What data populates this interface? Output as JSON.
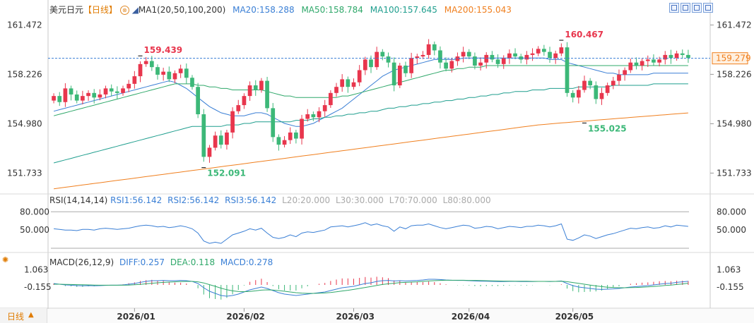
{
  "header": {
    "symbol": "美元日元",
    "period": "【日线】",
    "ma_label": "MA1(20,50,100,200)",
    "ma20": "MA20:158.288",
    "ma50": "MA50:158.784",
    "ma100": "MA100:157.645",
    "ma200": "MA200:155.043"
  },
  "rsi_header": {
    "label": "RSI(14,14,14)",
    "rsi1": "RSI1:56.142",
    "rsi2": "RSI2:56.142",
    "rsi3": "RSI3:56.142",
    "l20": "L20:20.000",
    "l30": "L30:30.000",
    "l70": "L70:70.000",
    "l80": "L80:80.000"
  },
  "macd_header": {
    "label": "MACD(26,12,9)",
    "diff": "DIFF:0.257",
    "dea": "DEA:0.118",
    "macd": "MACD:0.278"
  },
  "period_tab": {
    "label": "日线",
    "arrow": "▲"
  },
  "colors": {
    "up": "#e8364d",
    "down": "#3cb878",
    "ma20": "#3a7fd5",
    "ma50": "#2fa86a",
    "ma100": "#1f9e8e",
    "ma200": "#f07f1e",
    "current_price_bg": "#fff0e0"
  },
  "icons": [
    "zoom-in-icon",
    "zoom-out-icon",
    "back-icon",
    "download-icon"
  ],
  "chart_data": [
    {
      "type": "candlestick",
      "x_ticks": [
        "2026/01",
        "2026/02",
        "2026/03",
        "2026/04",
        "2026/05"
      ],
      "y_ticks": [
        "161.472",
        "158.226",
        "154.980",
        "151.733"
      ],
      "ylim": [
        150.5,
        162.0
      ],
      "current_price": "159.279",
      "current_value": 159.279,
      "annotations": [
        {
          "text": "159.439",
          "value": 159.439,
          "type": "high"
        },
        {
          "text": "152.091",
          "value": 152.091,
          "type": "low"
        },
        {
          "text": "160.467",
          "value": 160.467,
          "type": "high"
        },
        {
          "text": "155.025",
          "value": 155.025,
          "type": "low"
        }
      ],
      "closes": [
        156.8,
        156.4,
        157.3,
        156.9,
        156.5,
        156.8,
        157.0,
        156.7,
        156.9,
        157.3,
        157.1,
        157.0,
        157.3,
        157.6,
        158.1,
        158.9,
        159.1,
        158.7,
        158.2,
        158.4,
        157.9,
        158.3,
        158.6,
        158.0,
        157.4,
        155.6,
        152.8,
        153.4,
        154.2,
        153.6,
        154.4,
        155.8,
        156.2,
        156.8,
        157.5,
        157.2,
        157.8,
        156.0,
        154.1,
        153.6,
        153.9,
        154.4,
        154.0,
        155.3,
        155.6,
        155.4,
        155.8,
        156.2,
        157.0,
        157.4,
        157.9,
        157.4,
        157.7,
        158.5,
        159.2,
        158.7,
        159.7,
        159.4,
        159.0,
        157.5,
        158.8,
        158.3,
        159.3,
        159.4,
        159.5,
        160.2,
        159.8,
        159.0,
        158.6,
        159.1,
        159.4,
        159.7,
        159.4,
        158.8,
        159.0,
        159.5,
        159.2,
        158.9,
        159.3,
        159.6,
        159.4,
        159.2,
        159.5,
        159.6,
        159.9,
        159.7,
        159.3,
        159.6,
        160.0,
        157.0,
        156.7,
        157.2,
        157.8,
        157.5,
        156.6,
        157.0,
        157.5,
        157.8,
        158.2,
        158.5,
        159.0,
        158.8,
        159.1,
        159.2,
        159.0,
        159.2,
        159.5,
        159.3,
        159.6,
        159.5,
        159.3
      ],
      "series": [
        {
          "name": "MA20",
          "values": [
            155.8,
            155.9,
            156.0,
            156.1,
            156.2,
            156.3,
            156.4,
            156.5,
            156.6,
            156.7,
            156.8,
            156.9,
            157.0,
            157.1,
            157.2,
            157.3,
            157.4,
            157.5,
            157.6,
            157.7,
            157.8,
            157.7,
            157.5,
            157.3,
            157.0,
            156.7,
            156.4,
            156.1,
            155.9,
            155.7,
            155.6,
            155.5,
            155.5,
            155.5,
            155.6,
            155.7,
            155.7,
            155.6,
            155.4,
            155.2,
            155.0,
            154.9,
            154.8,
            154.8,
            154.9,
            155.0,
            155.2,
            155.4,
            155.6,
            155.8,
            156.0,
            156.3,
            156.6,
            156.9,
            157.2,
            157.5,
            157.8,
            158.1,
            158.3,
            158.5,
            158.6,
            158.7,
            158.8,
            158.9,
            159.0,
            159.1,
            159.2,
            159.2,
            159.2,
            159.2,
            159.2,
            159.3,
            159.3,
            159.3,
            159.3,
            159.3,
            159.3,
            159.3,
            159.3,
            159.3,
            159.3,
            159.3,
            159.3,
            159.3,
            159.3,
            159.3,
            159.2,
            159.2,
            159.2,
            159.0,
            158.9,
            158.8,
            158.7,
            158.6,
            158.5,
            158.4,
            158.3,
            158.3,
            158.2,
            158.2,
            158.2,
            158.2,
            158.2,
            158.2,
            158.3,
            158.3,
            158.3,
            158.3,
            158.3,
            158.3,
            158.3
          ]
        },
        {
          "name": "MA50",
          "values": [
            155.5,
            155.6,
            155.7,
            155.8,
            155.9,
            156.0,
            156.1,
            156.2,
            156.3,
            156.4,
            156.5,
            156.6,
            156.7,
            156.8,
            156.9,
            157.0,
            157.1,
            157.2,
            157.3,
            157.4,
            157.5,
            157.6,
            157.6,
            157.6,
            157.6,
            157.5,
            157.5,
            157.4,
            157.4,
            157.3,
            157.3,
            157.2,
            157.2,
            157.2,
            157.2,
            157.2,
            157.2,
            157.1,
            157.0,
            156.9,
            156.8,
            156.8,
            156.7,
            156.7,
            156.7,
            156.7,
            156.7,
            156.7,
            156.7,
            156.7,
            156.8,
            156.8,
            156.9,
            157.0,
            157.1,
            157.2,
            157.3,
            157.4,
            157.5,
            157.6,
            157.7,
            157.8,
            157.9,
            158.0,
            158.1,
            158.2,
            158.3,
            158.4,
            158.5,
            158.5,
            158.6,
            158.6,
            158.7,
            158.7,
            158.7,
            158.8,
            158.8,
            158.8,
            158.8,
            158.8,
            158.8,
            158.8,
            158.8,
            158.8,
            158.8,
            158.8,
            158.8,
            158.8,
            158.8,
            158.8,
            158.8,
            158.8,
            158.8,
            158.8,
            158.8,
            158.8,
            158.8,
            158.8,
            158.8,
            158.8,
            158.8,
            158.8,
            158.8,
            158.8,
            158.8,
            158.8,
            158.8,
            158.8,
            158.8,
            158.8,
            158.8
          ]
        },
        {
          "name": "MA100",
          "values": [
            152.4,
            152.5,
            152.6,
            152.7,
            152.8,
            152.9,
            153.0,
            153.1,
            153.2,
            153.3,
            153.4,
            153.5,
            153.6,
            153.7,
            153.8,
            153.9,
            154.0,
            154.1,
            154.2,
            154.3,
            154.4,
            154.5,
            154.6,
            154.7,
            154.8,
            154.8,
            154.8,
            154.8,
            154.8,
            154.8,
            154.9,
            154.9,
            154.9,
            155.0,
            155.0,
            155.1,
            155.1,
            155.1,
            155.1,
            155.1,
            155.1,
            155.1,
            155.2,
            155.2,
            155.2,
            155.3,
            155.3,
            155.4,
            155.4,
            155.5,
            155.5,
            155.6,
            155.6,
            155.7,
            155.7,
            155.8,
            155.8,
            155.9,
            156.0,
            156.0,
            156.1,
            156.1,
            156.2,
            156.2,
            156.3,
            156.3,
            156.4,
            156.4,
            156.5,
            156.5,
            156.6,
            156.6,
            156.7,
            156.7,
            156.8,
            156.8,
            156.9,
            156.9,
            157.0,
            157.0,
            157.1,
            157.1,
            157.1,
            157.2,
            157.2,
            157.2,
            157.3,
            157.3,
            157.3,
            157.3,
            157.3,
            157.4,
            157.4,
            157.4,
            157.4,
            157.4,
            157.4,
            157.5,
            157.5,
            157.5,
            157.5,
            157.5,
            157.5,
            157.5,
            157.6,
            157.6,
            157.6,
            157.6,
            157.6,
            157.6,
            157.6
          ]
        },
        {
          "name": "MA200",
          "values": [
            150.7,
            150.75,
            150.8,
            150.85,
            150.9,
            150.95,
            151.0,
            151.05,
            151.1,
            151.15,
            151.2,
            151.25,
            151.3,
            151.35,
            151.4,
            151.45,
            151.5,
            151.55,
            151.6,
            151.65,
            151.7,
            151.75,
            151.8,
            151.85,
            151.9,
            151.95,
            152.0,
            152.05,
            152.1,
            152.15,
            152.2,
            152.25,
            152.3,
            152.35,
            152.4,
            152.45,
            152.5,
            152.55,
            152.6,
            152.65,
            152.7,
            152.75,
            152.8,
            152.85,
            152.9,
            152.95,
            153.0,
            153.05,
            153.1,
            153.15,
            153.2,
            153.25,
            153.3,
            153.35,
            153.4,
            153.45,
            153.5,
            153.55,
            153.6,
            153.65,
            153.7,
            153.75,
            153.8,
            153.85,
            153.9,
            153.95,
            154.0,
            154.05,
            154.1,
            154.15,
            154.2,
            154.25,
            154.3,
            154.35,
            154.4,
            154.45,
            154.5,
            154.55,
            154.6,
            154.65,
            154.7,
            154.75,
            154.8,
            154.85,
            154.9,
            154.93,
            154.96,
            155.0,
            155.03,
            155.06,
            155.09,
            155.12,
            155.15,
            155.18,
            155.21,
            155.24,
            155.27,
            155.3,
            155.33,
            155.36,
            155.39,
            155.42,
            155.45,
            155.48,
            155.51,
            155.54,
            155.57,
            155.6,
            155.63,
            155.66,
            155.69
          ]
        }
      ]
    },
    {
      "type": "line",
      "name": "RSI",
      "y_ticks": [
        "80.000",
        "50.000"
      ],
      "ylim": [
        20,
        85
      ],
      "levels": [
        80,
        20
      ],
      "values": [
        52,
        51,
        50,
        50,
        49,
        51,
        51,
        50,
        52,
        53,
        52,
        51,
        52,
        53,
        55,
        57,
        58,
        57,
        55,
        56,
        54,
        55,
        57,
        55,
        52,
        45,
        32,
        28,
        30,
        28,
        35,
        42,
        45,
        48,
        52,
        50,
        53,
        45,
        38,
        36,
        38,
        42,
        39,
        45,
        47,
        46,
        48,
        50,
        55,
        56,
        57,
        55,
        57,
        59,
        62,
        58,
        60,
        57,
        55,
        48,
        55,
        52,
        57,
        58,
        58,
        60,
        57,
        54,
        52,
        54,
        56,
        58,
        57,
        53,
        54,
        56,
        55,
        52,
        54,
        56,
        55,
        54,
        56,
        56,
        58,
        57,
        55,
        57,
        60,
        35,
        33,
        37,
        42,
        40,
        36,
        39,
        42,
        44,
        47,
        50,
        53,
        52,
        54,
        55,
        53,
        54,
        57,
        55,
        58,
        57,
        56
      ]
    },
    {
      "type": "bar+line",
      "name": "MACD",
      "y_ticks": [
        "1.063",
        "-0.155"
      ],
      "ylim": [
        -1.6,
        1.5
      ],
      "diff": [
        0.1,
        0.05,
        0.0,
        -0.02,
        -0.05,
        -0.06,
        -0.05,
        -0.06,
        -0.05,
        -0.03,
        -0.02,
        -0.02,
        0.0,
        0.05,
        0.1,
        0.18,
        0.25,
        0.3,
        0.3,
        0.32,
        0.3,
        0.3,
        0.32,
        0.3,
        0.25,
        0.1,
        -0.2,
        -0.45,
        -0.6,
        -0.75,
        -0.8,
        -0.75,
        -0.65,
        -0.5,
        -0.35,
        -0.25,
        -0.15,
        -0.25,
        -0.4,
        -0.55,
        -0.65,
        -0.7,
        -0.75,
        -0.7,
        -0.65,
        -0.6,
        -0.55,
        -0.5,
        -0.4,
        -0.3,
        -0.2,
        -0.15,
        -0.1,
        0.0,
        0.1,
        0.15,
        0.25,
        0.3,
        0.32,
        0.28,
        0.3,
        0.28,
        0.3,
        0.32,
        0.35,
        0.4,
        0.4,
        0.38,
        0.35,
        0.33,
        0.32,
        0.32,
        0.3,
        0.28,
        0.26,
        0.26,
        0.25,
        0.24,
        0.24,
        0.25,
        0.25,
        0.24,
        0.24,
        0.24,
        0.25,
        0.25,
        0.24,
        0.25,
        0.28,
        0.1,
        -0.05,
        -0.15,
        -0.2,
        -0.25,
        -0.3,
        -0.32,
        -0.3,
        -0.28,
        -0.25,
        -0.2,
        -0.15,
        -0.12,
        -0.08,
        -0.05,
        0.0,
        0.05,
        0.1,
        0.12,
        0.18,
        0.22,
        0.257
      ],
      "dea": [
        0.05,
        0.05,
        0.04,
        0.03,
        0.02,
        0.01,
        0.0,
        -0.01,
        -0.02,
        -0.02,
        -0.02,
        -0.02,
        -0.02,
        -0.01,
        0.01,
        0.04,
        0.08,
        0.12,
        0.15,
        0.18,
        0.2,
        0.22,
        0.24,
        0.25,
        0.25,
        0.22,
        0.14,
        0.02,
        -0.1,
        -0.23,
        -0.34,
        -0.42,
        -0.47,
        -0.48,
        -0.46,
        -0.42,
        -0.37,
        -0.35,
        -0.36,
        -0.4,
        -0.45,
        -0.5,
        -0.55,
        -0.58,
        -0.6,
        -0.6,
        -0.59,
        -0.57,
        -0.54,
        -0.49,
        -0.43,
        -0.38,
        -0.32,
        -0.25,
        -0.18,
        -0.11,
        -0.04,
        0.03,
        0.08,
        0.12,
        0.16,
        0.18,
        0.2,
        0.22,
        0.25,
        0.28,
        0.3,
        0.32,
        0.33,
        0.33,
        0.33,
        0.33,
        0.32,
        0.32,
        0.31,
        0.3,
        0.29,
        0.28,
        0.27,
        0.27,
        0.26,
        0.26,
        0.26,
        0.25,
        0.25,
        0.25,
        0.25,
        0.25,
        0.26,
        0.23,
        0.17,
        0.11,
        0.05,
        -0.01,
        -0.07,
        -0.12,
        -0.16,
        -0.18,
        -0.2,
        -0.2,
        -0.19,
        -0.18,
        -0.16,
        -0.14,
        -0.11,
        -0.08,
        -0.04,
        -0.01,
        0.03,
        0.07,
        0.118
      ]
    }
  ]
}
